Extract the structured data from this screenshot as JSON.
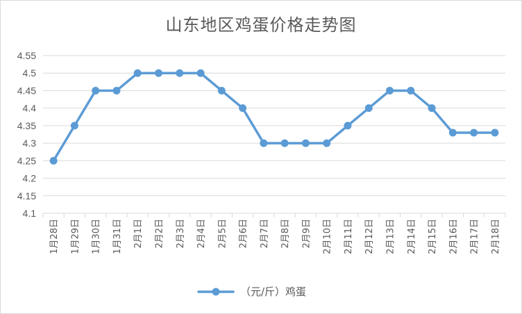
{
  "chart_data": {
    "type": "line",
    "title": "山东地区鸡蛋价格走势图",
    "categories": [
      "1月28日",
      "1月29日",
      "1月30日",
      "1月31日",
      "2月1日",
      "2月2日",
      "2月3日",
      "2月4日",
      "2月5日",
      "2月6日",
      "2月7日",
      "2月8日",
      "2月9日",
      "2月10日",
      "2月11日",
      "2月12日",
      "2月13日",
      "2月14日",
      "2月15日",
      "2月16日",
      "2月17日",
      "2月18日"
    ],
    "series": [
      {
        "name": "（元/斤）鸡蛋",
        "values": [
          4.25,
          4.35,
          4.45,
          4.45,
          4.5,
          4.5,
          4.5,
          4.5,
          4.45,
          4.4,
          4.3,
          4.3,
          4.3,
          4.3,
          4.35,
          4.4,
          4.45,
          4.45,
          4.4,
          4.33,
          4.33,
          4.33
        ],
        "color": "#5b9bd5"
      }
    ],
    "yticks": [
      "4.1",
      "4.15",
      "4.2",
      "4.25",
      "4.3",
      "4.35",
      "4.4",
      "4.45",
      "4.5",
      "4.55"
    ],
    "ylim": [
      4.1,
      4.55
    ],
    "grid": true,
    "legend": "bottom-center"
  }
}
